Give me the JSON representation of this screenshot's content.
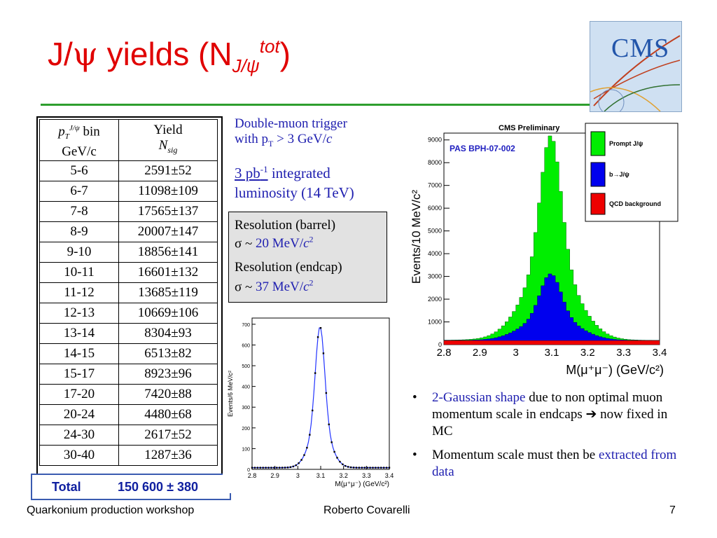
{
  "title": {
    "prefix": "J/",
    "psi": "ψ",
    "middle": " yields (N",
    "sub": "J/ψ",
    "sup": "tot",
    "suffix": ")"
  },
  "logo": {
    "text": "CMS"
  },
  "table": {
    "header_bin_line1": "p",
    "header_bin_line1b": "J/ψ",
    "header_bin_line1c": " bin",
    "header_bin_line2": "GeV/c",
    "header_yield_line1": "Yield",
    "header_yield_line2": "N",
    "header_yield_sub": "sig",
    "rows": [
      {
        "bin": "5-6",
        "yield": "2591±52"
      },
      {
        "bin": "6-7",
        "yield": "11098±109"
      },
      {
        "bin": "7-8",
        "yield": "17565±137"
      },
      {
        "bin": "8-9",
        "yield": "20007±147"
      },
      {
        "bin": "9-10",
        "yield": "18856±141"
      },
      {
        "bin": "10-11",
        "yield": "16601±132"
      },
      {
        "bin": "11-12",
        "yield": "13685±119"
      },
      {
        "bin": "12-13",
        "yield": "10669±106"
      },
      {
        "bin": "13-14",
        "yield": "8304±93"
      },
      {
        "bin": "14-15",
        "yield": "6513±82"
      },
      {
        "bin": "15-17",
        "yield": "8923±96"
      },
      {
        "bin": "17-20",
        "yield": "7420±88"
      },
      {
        "bin": "20-24",
        "yield": "4480±68"
      },
      {
        "bin": "24-30",
        "yield": "2617±52"
      },
      {
        "bin": "30-40",
        "yield": "1287±36"
      }
    ],
    "total_label": "Total",
    "total_value": "150 600 ± 380"
  },
  "trigger": {
    "line1": "Double-muon trigger",
    "line2a": "with p",
    "line2sub": "T",
    "line2b": " > 3 GeV/",
    "line2c": "c"
  },
  "lumi": {
    "amount": "3 pb",
    "exp": "-1",
    "text1": " integrated",
    "text2": "luminosity (14 TeV)"
  },
  "resolution": {
    "barrel_label": "Resolution (barrel)",
    "barrel_prefix": "σ ~ ",
    "barrel_value": "20 MeV/",
    "endcap_label": "Resolution (endcap)",
    "endcap_prefix": "σ ~ ",
    "endcap_value": "37 MeV/",
    "unit_c": "c",
    "unit_exp": "2"
  },
  "plot1": {
    "ylabel": "Events/6 MeV/c²",
    "xlabel": "M(μ⁺μ⁻) (GeV/c²)",
    "xticks": [
      "2.8",
      "2.9",
      "3",
      "3.1",
      "3.2",
      "3.3",
      "3.4"
    ],
    "yticks": [
      "0",
      "100",
      "200",
      "300",
      "400",
      "500",
      "600",
      "700"
    ]
  },
  "plot2": {
    "header": "CMS Preliminary",
    "tag": "PAS BPH-07-002",
    "ylabel": "Events/10 MeV/c²",
    "xlabel": "M(μ⁺μ⁻) (GeV/c²)",
    "xticks": [
      "2.8",
      "2.9",
      "3",
      "3.1",
      "3.2",
      "3.3",
      "3.4"
    ],
    "yticks": [
      "0",
      "1000",
      "2000",
      "3000",
      "4000",
      "5000",
      "6000",
      "7000",
      "8000",
      "9000"
    ],
    "legend": [
      "Prompt J/ψ",
      "b→J/ψ",
      "QCD background"
    ],
    "colors": {
      "prompt": "#00ee00",
      "b": "#0000ee",
      "qcd": "#ee0000"
    }
  },
  "bullets": [
    {
      "blue": "2-Gaussian shape",
      "rest": " due to non optimal muon momentum scale in endcaps ➔ now fixed in MC"
    },
    {
      "pre": "Momentum scale must then be ",
      "blue": "extracted from data"
    }
  ],
  "footer": {
    "left": "Quarkonium production workshop",
    "center": "Roberto Covarelli",
    "right": "7"
  }
}
